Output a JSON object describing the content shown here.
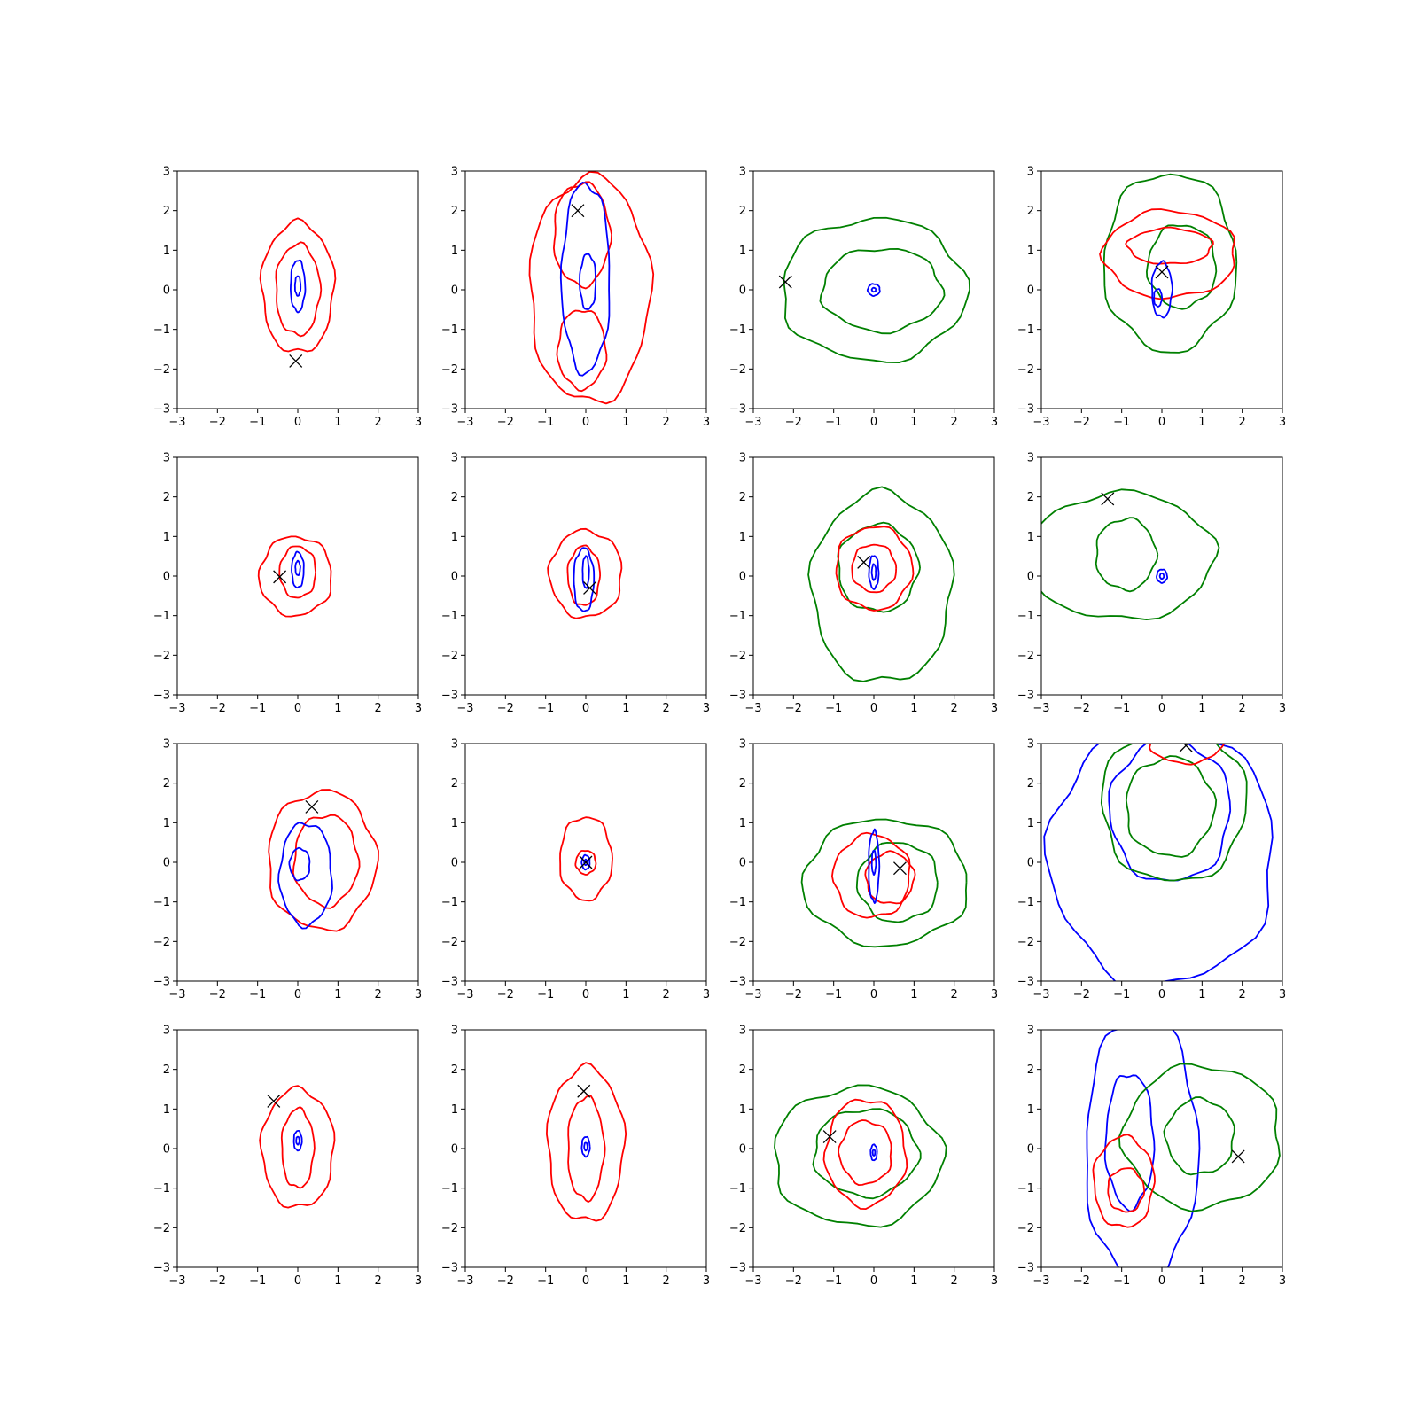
{
  "chart_data": {
    "type": "contour",
    "layout": {
      "rows": 4,
      "cols": 4
    },
    "xlim": [
      -3,
      3
    ],
    "ylim": [
      -3,
      3
    ],
    "ticks": [
      "−3",
      "−2",
      "−1",
      "0",
      "1",
      "2",
      "3"
    ],
    "tick_values": [
      -3,
      -2,
      -1,
      0,
      1,
      2,
      3
    ],
    "colors": {
      "red": "#ff0000",
      "blue": "#0000ff",
      "green": "#008000",
      "marker": "#000000"
    },
    "panels": [
      {
        "contours": [
          {
            "color": "red",
            "cx": 0,
            "cy": 0.05,
            "rx": 0.9,
            "ry": 1.65
          },
          {
            "color": "red",
            "cx": 0,
            "cy": 0.0,
            "rx": 0.55,
            "ry": 1.15
          },
          {
            "color": "blue",
            "cx": 0,
            "cy": 0.1,
            "rx": 0.18,
            "ry": 0.65
          },
          {
            "color": "blue",
            "cx": 0,
            "cy": 0.1,
            "rx": 0.07,
            "ry": 0.25
          }
        ],
        "marker": [
          -0.05,
          -1.8
        ]
      },
      {
        "contours": [
          {
            "color": "red",
            "cx": 0.1,
            "cy": 0,
            "rx": 1.5,
            "ry": 2.85
          },
          {
            "color": "red",
            "cx": -0.1,
            "cy": 1.4,
            "rx": 0.7,
            "ry": 1.3
          },
          {
            "color": "red",
            "cx": -0.1,
            "cy": -1.5,
            "rx": 0.6,
            "ry": 1.0
          },
          {
            "color": "blue",
            "cx": 0.0,
            "cy": 0.3,
            "rx": 0.6,
            "ry": 2.4
          },
          {
            "color": "blue",
            "cx": 0.05,
            "cy": 0.2,
            "rx": 0.2,
            "ry": 0.7
          }
        ],
        "marker": [
          -0.2,
          2.0
        ]
      },
      {
        "contours": [
          {
            "color": "green",
            "cx": 0.0,
            "cy": 0.0,
            "rx": 2.3,
            "ry": 1.8
          },
          {
            "color": "green",
            "cx": 0.2,
            "cy": 0.0,
            "rx": 1.5,
            "ry": 1.05
          },
          {
            "color": "blue",
            "cx": 0,
            "cy": 0.0,
            "rx": 0.15,
            "ry": 0.15
          },
          {
            "color": "blue",
            "cx": 0,
            "cy": 0.0,
            "rx": 0.05,
            "ry": 0.05
          }
        ],
        "marker": [
          -2.2,
          0.2
        ]
      },
      {
        "contours": [
          {
            "color": "green",
            "cx": 0.2,
            "cy": 0.7,
            "rx": 1.65,
            "ry": 2.25
          },
          {
            "color": "green",
            "cx": 0.5,
            "cy": 0.6,
            "rx": 0.85,
            "ry": 1.05
          },
          {
            "color": "red",
            "cx": 0.2,
            "cy": 0.9,
            "rx": 1.65,
            "ry": 1.1
          },
          {
            "color": "red",
            "cx": 0.2,
            "cy": 1.1,
            "rx": 1.05,
            "ry": 0.45
          },
          {
            "color": "blue",
            "cx": 0,
            "cy": 0.0,
            "rx": 0.25,
            "ry": 0.7
          },
          {
            "color": "blue",
            "cx": -0.1,
            "cy": -0.2,
            "rx": 0.1,
            "ry": 0.22
          }
        ],
        "marker": [
          0.0,
          0.45
        ]
      },
      {
        "contours": [
          {
            "color": "red",
            "cx": -0.05,
            "cy": 0.0,
            "rx": 0.9,
            "ry": 1.0
          },
          {
            "color": "red",
            "cx": 0,
            "cy": 0.1,
            "rx": 0.45,
            "ry": 0.65
          },
          {
            "color": "blue",
            "cx": 0,
            "cy": 0.15,
            "rx": 0.15,
            "ry": 0.45
          },
          {
            "color": "blue",
            "cx": 0,
            "cy": 0.2,
            "rx": 0.06,
            "ry": 0.18
          }
        ],
        "marker": [
          -0.45,
          -0.02
        ]
      },
      {
        "contours": [
          {
            "color": "red",
            "cx": 0.0,
            "cy": 0.05,
            "rx": 0.9,
            "ry": 1.1
          },
          {
            "color": "red",
            "cx": -0.05,
            "cy": 0.0,
            "rx": 0.4,
            "ry": 0.75
          },
          {
            "color": "blue",
            "cx": -0.05,
            "cy": -0.1,
            "rx": 0.25,
            "ry": 0.8
          },
          {
            "color": "blue",
            "cx": 0.0,
            "cy": 0.1,
            "rx": 0.08,
            "ry": 0.4
          }
        ],
        "marker": [
          0.1,
          -0.3
        ]
      },
      {
        "contours": [
          {
            "color": "green",
            "cx": 0.2,
            "cy": -0.3,
            "rx": 1.75,
            "ry": 2.4
          },
          {
            "color": "green",
            "cx": 0.1,
            "cy": 0.2,
            "rx": 1.0,
            "ry": 1.1
          },
          {
            "color": "red",
            "cx": 0.0,
            "cy": 0.2,
            "rx": 0.95,
            "ry": 1.05
          },
          {
            "color": "red",
            "cx": 0.0,
            "cy": 0.2,
            "rx": 0.55,
            "ry": 0.6
          },
          {
            "color": "blue",
            "cx": 0,
            "cy": 0.1,
            "rx": 0.12,
            "ry": 0.42
          },
          {
            "color": "blue",
            "cx": 0,
            "cy": 0.1,
            "rx": 0.05,
            "ry": 0.2
          }
        ],
        "marker": [
          -0.25,
          0.35
        ]
      },
      {
        "contours": [
          {
            "color": "green",
            "cx": -1.0,
            "cy": 0.5,
            "rx": 2.3,
            "ry": 1.6
          },
          {
            "color": "green",
            "cx": -0.9,
            "cy": 0.55,
            "rx": 0.75,
            "ry": 0.9
          },
          {
            "color": "blue",
            "cx": 0,
            "cy": 0.0,
            "rx": 0.13,
            "ry": 0.17
          },
          {
            "color": "blue",
            "cx": 0,
            "cy": 0.0,
            "rx": 0.05,
            "ry": 0.07
          }
        ],
        "marker": [
          -1.35,
          1.95
        ]
      },
      {
        "contours": [
          {
            "color": "red",
            "cx": 0.6,
            "cy": 0.05,
            "rx": 1.35,
            "ry": 1.75
          },
          {
            "color": "red",
            "cx": 0.7,
            "cy": 0.05,
            "rx": 0.8,
            "ry": 1.15
          },
          {
            "color": "blue",
            "cx": 0.2,
            "cy": -0.3,
            "rx": 0.65,
            "ry": 1.3
          },
          {
            "color": "blue",
            "cx": 0.05,
            "cy": -0.05,
            "rx": 0.25,
            "ry": 0.4
          }
        ],
        "marker": [
          0.35,
          1.4
        ]
      },
      {
        "contours": [
          {
            "color": "red",
            "cx": 0.0,
            "cy": 0.1,
            "rx": 0.65,
            "ry": 1.05
          },
          {
            "color": "red",
            "cx": 0.0,
            "cy": 0.0,
            "rx": 0.25,
            "ry": 0.3
          },
          {
            "color": "blue",
            "cx": 0,
            "cy": 0.0,
            "rx": 0.1,
            "ry": 0.18
          },
          {
            "color": "blue",
            "cx": 0,
            "cy": 0.0,
            "rx": 0.04,
            "ry": 0.07
          }
        ],
        "marker": [
          0.0,
          0.0
        ]
      },
      {
        "contours": [
          {
            "color": "green",
            "cx": 0.3,
            "cy": -0.5,
            "rx": 2.05,
            "ry": 1.6
          },
          {
            "color": "green",
            "cx": 0.6,
            "cy": -0.5,
            "rx": 1.0,
            "ry": 1.0
          },
          {
            "color": "red",
            "cx": -0.05,
            "cy": -0.35,
            "rx": 0.95,
            "ry": 1.05
          },
          {
            "color": "red",
            "cx": 0.4,
            "cy": -0.4,
            "rx": 0.6,
            "ry": 0.65
          },
          {
            "color": "blue",
            "cx": 0,
            "cy": -0.1,
            "rx": 0.13,
            "ry": 0.9
          },
          {
            "color": "blue",
            "cx": 0,
            "cy": 0.0,
            "rx": 0.05,
            "ry": 0.3
          }
        ],
        "marker": [
          0.65,
          -0.15
        ]
      },
      {
        "contours": [
          {
            "color": "blue",
            "cx": 0.0,
            "cy": 0.2,
            "rx": 2.8,
            "ry": 3.3
          },
          {
            "color": "blue",
            "cx": 0.2,
            "cy": 1.3,
            "rx": 1.5,
            "ry": 1.8
          },
          {
            "color": "green",
            "cx": 0.3,
            "cy": 1.5,
            "rx": 1.8,
            "ry": 2.0
          },
          {
            "color": "green",
            "cx": 0.2,
            "cy": 1.4,
            "rx": 1.1,
            "ry": 1.25
          },
          {
            "color": "red",
            "cx": 0.6,
            "cy": 3.05,
            "rx": 0.9,
            "ry": 0.55
          }
        ],
        "marker": [
          0.6,
          2.95
        ]
      },
      {
        "contours": [
          {
            "color": "red",
            "cx": 0.0,
            "cy": 0.0,
            "rx": 0.9,
            "ry": 1.5
          },
          {
            "color": "red",
            "cx": 0,
            "cy": 0.0,
            "rx": 0.4,
            "ry": 1.0
          },
          {
            "color": "blue",
            "cx": 0,
            "cy": 0.2,
            "rx": 0.1,
            "ry": 0.25
          },
          {
            "color": "blue",
            "cx": 0,
            "cy": 0.2,
            "rx": 0.04,
            "ry": 0.1
          }
        ],
        "marker": [
          -0.6,
          1.2
        ]
      },
      {
        "contours": [
          {
            "color": "red",
            "cx": 0.0,
            "cy": 0.1,
            "rx": 0.95,
            "ry": 1.95
          },
          {
            "color": "red",
            "cx": 0.0,
            "cy": 0.0,
            "rx": 0.45,
            "ry": 1.3
          },
          {
            "color": "blue",
            "cx": 0,
            "cy": 0.05,
            "rx": 0.1,
            "ry": 0.25
          },
          {
            "color": "blue",
            "cx": 0,
            "cy": 0.05,
            "rx": 0.04,
            "ry": 0.1
          }
        ],
        "marker": [
          -0.05,
          1.45
        ]
      },
      {
        "contours": [
          {
            "color": "green",
            "cx": -0.4,
            "cy": -0.2,
            "rx": 2.1,
            "ry": 1.75
          },
          {
            "color": "green",
            "cx": -0.2,
            "cy": -0.1,
            "rx": 1.3,
            "ry": 1.1
          },
          {
            "color": "red",
            "cx": -0.2,
            "cy": -0.1,
            "rx": 1.0,
            "ry": 1.35
          },
          {
            "color": "red",
            "cx": -0.2,
            "cy": -0.1,
            "rx": 0.65,
            "ry": 0.8
          },
          {
            "color": "blue",
            "cx": 0,
            "cy": -0.1,
            "rx": 0.08,
            "ry": 0.2
          },
          {
            "color": "blue",
            "cx": 0,
            "cy": -0.1,
            "rx": 0.03,
            "ry": 0.08
          }
        ],
        "marker": [
          -1.1,
          0.3
        ]
      },
      {
        "contours": [
          {
            "color": "blue",
            "cx": -0.5,
            "cy": 0.0,
            "rx": 1.4,
            "ry": 3.4
          },
          {
            "color": "blue",
            "cx": -0.8,
            "cy": 0.2,
            "rx": 0.6,
            "ry": 1.7
          },
          {
            "color": "green",
            "cx": 1.0,
            "cy": 0.3,
            "rx": 1.95,
            "ry": 1.8
          },
          {
            "color": "green",
            "cx": 0.95,
            "cy": 0.3,
            "rx": 0.85,
            "ry": 0.95
          },
          {
            "color": "red",
            "cx": -0.95,
            "cy": -0.85,
            "rx": 0.75,
            "ry": 1.15
          },
          {
            "color": "red",
            "cx": -0.9,
            "cy": -1.05,
            "rx": 0.45,
            "ry": 0.55
          }
        ],
        "marker": [
          1.9,
          -0.2
        ]
      }
    ]
  }
}
